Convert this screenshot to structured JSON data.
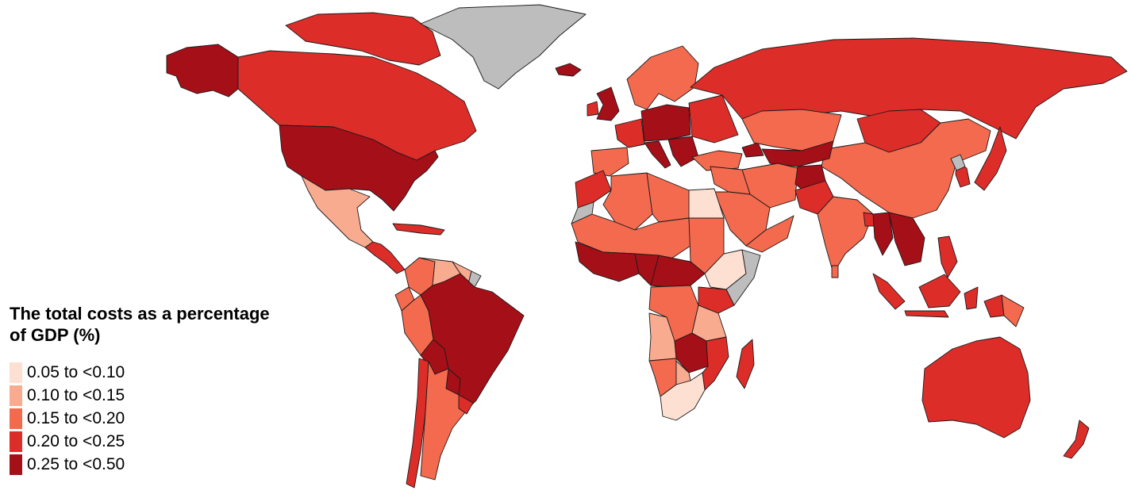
{
  "legend": {
    "title_line1": "The total costs as a percentage",
    "title_line2": "of GDP (%)",
    "items": [
      {
        "label": "0.05 to <0.10",
        "color": "#fde0d2"
      },
      {
        "label": "0.10 to <0.15",
        "color": "#f9ab8f"
      },
      {
        "label": "0.15 to <0.20",
        "color": "#f46a4e"
      },
      {
        "label": "0.20 to <0.25",
        "color": "#dc2d29"
      },
      {
        "label": "0.25 to <0.50",
        "color": "#a50f18"
      }
    ]
  },
  "no_data_color": "#bdbdbd",
  "regions": [
    {
      "name": "Alaska (United States)",
      "bin": 4
    },
    {
      "name": "Canada",
      "bin": 3
    },
    {
      "name": "Greenland",
      "bin": null
    },
    {
      "name": "United States",
      "bin": 4
    },
    {
      "name": "Mexico",
      "bin": 1
    },
    {
      "name": "Central America",
      "bin": 3
    },
    {
      "name": "Caribbean",
      "bin": 3
    },
    {
      "name": "Colombia",
      "bin": 2
    },
    {
      "name": "Venezuela",
      "bin": 1
    },
    {
      "name": "Guianas",
      "bin": 1
    },
    {
      "name": "French Guiana",
      "bin": null
    },
    {
      "name": "Ecuador",
      "bin": 2
    },
    {
      "name": "Peru",
      "bin": 2
    },
    {
      "name": "Brazil",
      "bin": 4
    },
    {
      "name": "Bolivia",
      "bin": 4
    },
    {
      "name": "Paraguay",
      "bin": 4
    },
    {
      "name": "Chile",
      "bin": 3
    },
    {
      "name": "Argentina",
      "bin": 2
    },
    {
      "name": "Uruguay",
      "bin": 3
    },
    {
      "name": "Iceland",
      "bin": 4
    },
    {
      "name": "United Kingdom",
      "bin": 4
    },
    {
      "name": "Ireland",
      "bin": 3
    },
    {
      "name": "Scandinavia",
      "bin": 2
    },
    {
      "name": "Iberia",
      "bin": 2
    },
    {
      "name": "France",
      "bin": 3
    },
    {
      "name": "Central Europe",
      "bin": 4
    },
    {
      "name": "Italy",
      "bin": 4
    },
    {
      "name": "Balkans",
      "bin": 4
    },
    {
      "name": "Eastern Europe",
      "bin": 3
    },
    {
      "name": "Russia",
      "bin": 3
    },
    {
      "name": "Turkey",
      "bin": 2
    },
    {
      "name": "Caucasus",
      "bin": 4
    },
    {
      "name": "Kazakhstan",
      "bin": 2
    },
    {
      "name": "Mongolia",
      "bin": 3
    },
    {
      "name": "China",
      "bin": 2
    },
    {
      "name": "Korean Peninsula",
      "bin": 3
    },
    {
      "name": "North Korea",
      "bin": null
    },
    {
      "name": "Japan",
      "bin": 3
    },
    {
      "name": "Central Asia",
      "bin": 4
    },
    {
      "name": "Iran",
      "bin": 2
    },
    {
      "name": "Afghanistan",
      "bin": 4
    },
    {
      "name": "Pakistan",
      "bin": 3
    },
    {
      "name": "India",
      "bin": 2
    },
    {
      "name": "Bangladesh",
      "bin": 3
    },
    {
      "name": "Myanmar",
      "bin": 4
    },
    {
      "name": "Indochina",
      "bin": 4
    },
    {
      "name": "Sri Lanka",
      "bin": 2
    },
    {
      "name": "Sumatra",
      "bin": 3
    },
    {
      "name": "Java",
      "bin": 3
    },
    {
      "name": "Borneo",
      "bin": 3
    },
    {
      "name": "Sulawesi",
      "bin": 3
    },
    {
      "name": "Philippines",
      "bin": 3
    },
    {
      "name": "New Guinea",
      "bin": 3
    },
    {
      "name": "Papua New Guinea",
      "bin": 2
    },
    {
      "name": "Australia",
      "bin": 3
    },
    {
      "name": "New Zealand",
      "bin": 3
    },
    {
      "name": "Levant and Iraq",
      "bin": 2
    },
    {
      "name": "Saudi Arabia",
      "bin": 2
    },
    {
      "name": "Yemen and Oman",
      "bin": 2
    },
    {
      "name": "Egypt",
      "bin": 0
    },
    {
      "name": "Morocco",
      "bin": 3
    },
    {
      "name": "Western Sahara",
      "bin": null
    },
    {
      "name": "Algeria",
      "bin": 2
    },
    {
      "name": "Libya",
      "bin": 2
    },
    {
      "name": "Sahel",
      "bin": 2
    },
    {
      "name": "Sudan",
      "bin": 2
    },
    {
      "name": "West Africa",
      "bin": 4
    },
    {
      "name": "Nigeria",
      "bin": 4
    },
    {
      "name": "Central Africa",
      "bin": 4
    },
    {
      "name": "Ethiopia",
      "bin": 0
    },
    {
      "name": "Somalia",
      "bin": null
    },
    {
      "name": "DR Congo",
      "bin": 2
    },
    {
      "name": "East Africa",
      "bin": 3
    },
    {
      "name": "Tanzania",
      "bin": 1
    },
    {
      "name": "Angola",
      "bin": 1
    },
    {
      "name": "Zambia and Zimbabwe",
      "bin": 4
    },
    {
      "name": "Mozambique",
      "bin": 3
    },
    {
      "name": "Namibia",
      "bin": 2
    },
    {
      "name": "Botswana",
      "bin": 1
    },
    {
      "name": "South Africa",
      "bin": 0
    },
    {
      "name": "Madagascar",
      "bin": 3
    }
  ]
}
